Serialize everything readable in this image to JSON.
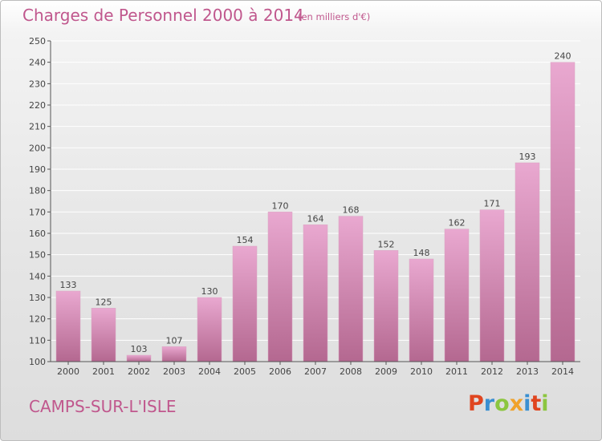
{
  "header": {
    "title": "Charges de Personnel 2000 à 2014",
    "unit_note": "(en milliers d'€)"
  },
  "footer": {
    "place": "CAMPS-SUR-L'ISLE",
    "logo_letters": [
      "P",
      "r",
      "o",
      "x",
      "i",
      "t",
      "i"
    ],
    "logo_colors": [
      "#e0451f",
      "#3a8fd1",
      "#8cc63f",
      "#f0a22a",
      "#3a8fd1",
      "#e0451f",
      "#8cc63f"
    ]
  },
  "colors": {
    "accent": "#c0578d",
    "bar_light": "#e9a8d0",
    "bar_dark": "#b46890",
    "grid": "#ffffff",
    "axis": "#555555"
  },
  "chart_data": {
    "type": "bar",
    "categories": [
      "2000",
      "2001",
      "2002",
      "2003",
      "2004",
      "2005",
      "2006",
      "2007",
      "2008",
      "2009",
      "2010",
      "2011",
      "2012",
      "2013",
      "2014"
    ],
    "values": [
      133,
      125,
      103,
      107,
      130,
      154,
      170,
      164,
      168,
      152,
      148,
      162,
      171,
      193,
      240
    ],
    "ylim": [
      100,
      250
    ],
    "yticks": [
      100,
      110,
      120,
      130,
      140,
      150,
      160,
      170,
      180,
      190,
      200,
      210,
      220,
      230,
      240,
      250
    ],
    "grid": true,
    "data_labels": true
  }
}
